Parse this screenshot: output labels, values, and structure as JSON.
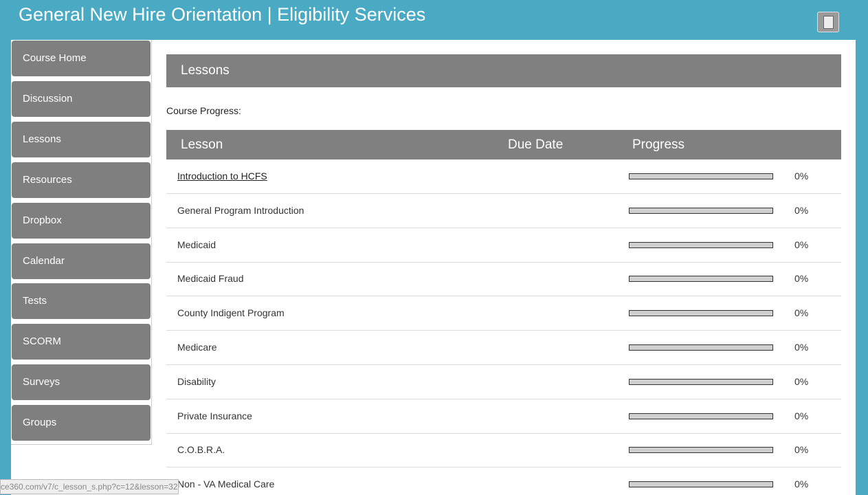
{
  "header": {
    "title": "General New Hire Orientation | Eligibility Services"
  },
  "sidebar": {
    "items": [
      "Course Home",
      "Discussion",
      "Lessons",
      "Resources",
      "Dropbox",
      "Calendar",
      "Tests",
      "SCORM",
      "Surveys",
      "Groups"
    ]
  },
  "content": {
    "title": "Lessons",
    "course_progress_label": "Course Progress:",
    "table": {
      "columns": [
        "Lesson",
        "Due Date",
        "Progress"
      ],
      "rows": [
        {
          "lesson": "Introduction to HCFS",
          "link": true,
          "progress": 0,
          "progress_label": "0%"
        },
        {
          "lesson": "General Program Introduction",
          "link": false,
          "progress": 0,
          "progress_label": "0%"
        },
        {
          "lesson": "Medicaid",
          "link": false,
          "progress": 0,
          "progress_label": "0%"
        },
        {
          "lesson": "Medicaid Fraud",
          "link": false,
          "progress": 0,
          "progress_label": "0%"
        },
        {
          "lesson": "County Indigent Program",
          "link": false,
          "progress": 0,
          "progress_label": "0%"
        },
        {
          "lesson": "Medicare",
          "link": false,
          "progress": 0,
          "progress_label": "0%"
        },
        {
          "lesson": "Disability",
          "link": false,
          "progress": 0,
          "progress_label": "0%"
        },
        {
          "lesson": "Private Insurance",
          "link": false,
          "progress": 0,
          "progress_label": "0%"
        },
        {
          "lesson": "C.O.B.R.A.",
          "link": false,
          "progress": 0,
          "progress_label": "0%"
        },
        {
          "lesson": "Non - VA Medical Care",
          "link": false,
          "progress": 0,
          "progress_label": "0%"
        }
      ]
    }
  },
  "status_bar": {
    "url": "ce360.com/v7/c_lesson_s.php?c=12&lesson=32"
  }
}
